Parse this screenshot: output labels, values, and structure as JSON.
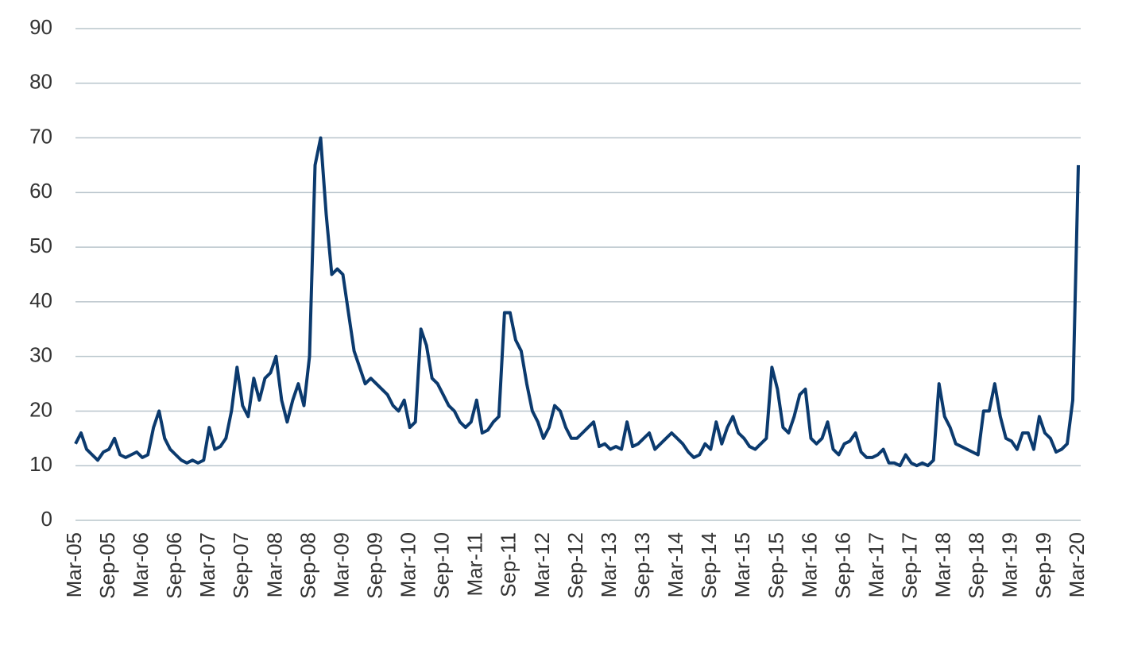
{
  "chart_data": {
    "type": "line",
    "categories": [
      "Mar-05",
      null,
      null,
      null,
      null,
      null,
      "Sep-05",
      null,
      null,
      null,
      null,
      null,
      "Mar-06",
      null,
      null,
      null,
      null,
      null,
      "Sep-06",
      null,
      null,
      null,
      null,
      null,
      "Mar-07",
      null,
      null,
      null,
      null,
      null,
      "Sep-07",
      null,
      null,
      null,
      null,
      null,
      "Mar-08",
      null,
      null,
      null,
      null,
      null,
      "Sep-08",
      null,
      null,
      null,
      null,
      null,
      "Mar-09",
      null,
      null,
      null,
      null,
      null,
      "Sep-09",
      null,
      null,
      null,
      null,
      null,
      "Mar-10",
      null,
      null,
      null,
      null,
      null,
      "Sep-10",
      null,
      null,
      null,
      null,
      null,
      "Mar-11",
      null,
      null,
      null,
      null,
      null,
      "Sep-11",
      null,
      null,
      null,
      null,
      null,
      "Mar-12",
      null,
      null,
      null,
      null,
      null,
      "Sep-12",
      null,
      null,
      null,
      null,
      null,
      "Mar-13",
      null,
      null,
      null,
      null,
      null,
      "Sep-13",
      null,
      null,
      null,
      null,
      null,
      "Mar-14",
      null,
      null,
      null,
      null,
      null,
      "Sep-14",
      null,
      null,
      null,
      null,
      null,
      "Mar-15",
      null,
      null,
      null,
      null,
      null,
      "Sep-15",
      null,
      null,
      null,
      null,
      null,
      "Mar-16",
      null,
      null,
      null,
      null,
      null,
      "Sep-16",
      null,
      null,
      null,
      null,
      null,
      "Mar-17",
      null,
      null,
      null,
      null,
      null,
      "Sep-17",
      null,
      null,
      null,
      null,
      null,
      "Mar-18",
      null,
      null,
      null,
      null,
      null,
      "Sep-18",
      null,
      null,
      null,
      null,
      null,
      "Mar-19",
      null,
      null,
      null,
      null,
      null,
      "Sep-19",
      null,
      null,
      null,
      null,
      null,
      "Mar-20"
    ],
    "series": [
      {
        "color": "#0b3a6e",
        "values": [
          14,
          16,
          13,
          12,
          11,
          12.5,
          13,
          15,
          12,
          11.5,
          12,
          12.5,
          11.5,
          12,
          17,
          20,
          15,
          13,
          12,
          11,
          10.5,
          11,
          10.5,
          11,
          17,
          13,
          13.5,
          15,
          20,
          28,
          21,
          19,
          26,
          22,
          26,
          27,
          30,
          22,
          18,
          22,
          25,
          21,
          30,
          65,
          70,
          56,
          45,
          46,
          45,
          38,
          31,
          28,
          25,
          26,
          25,
          24,
          23,
          21,
          20,
          22,
          17,
          18,
          35,
          32,
          26,
          25,
          23,
          21,
          20,
          18,
          17,
          18,
          22,
          16,
          16.5,
          18,
          19,
          38,
          38,
          33,
          31,
          25,
          20,
          18,
          15,
          17,
          21,
          20,
          17,
          15,
          15,
          16,
          17,
          18,
          13.5,
          14,
          13,
          13.5,
          13,
          18,
          13.5,
          14,
          15,
          16,
          13,
          14,
          15,
          16,
          15,
          14,
          12.5,
          11.5,
          12,
          14,
          13,
          18,
          14,
          17,
          19,
          16,
          15,
          13.5,
          13,
          14,
          15,
          28,
          24,
          17,
          16,
          19,
          23,
          24,
          15,
          14,
          15,
          18,
          13,
          12,
          14,
          14.5,
          16,
          12.5,
          11.5,
          11.5,
          12,
          13,
          10.5,
          10.5,
          10,
          12,
          10.5,
          10,
          10.5,
          10,
          11,
          25,
          19,
          17,
          14,
          13.5,
          13,
          12.5,
          12,
          20,
          20,
          25,
          19,
          15,
          14.5,
          13,
          16,
          16,
          13,
          19,
          16,
          15,
          12.5,
          13,
          14,
          22,
          65
        ]
      }
    ],
    "ylim": [
      0,
      90
    ],
    "yticks": [
      0,
      10,
      20,
      30,
      40,
      50,
      60,
      70,
      80,
      90
    ],
    "grid": true
  }
}
